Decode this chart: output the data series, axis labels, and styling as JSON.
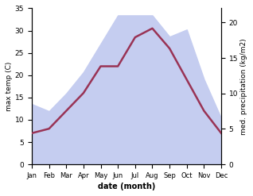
{
  "months": [
    "Jan",
    "Feb",
    "Mar",
    "Apr",
    "May",
    "Jun",
    "Jul",
    "Aug",
    "Sep",
    "Oct",
    "Nov",
    "Dec"
  ],
  "temp": [
    7,
    8,
    12,
    16,
    22,
    22,
    28.5,
    30.5,
    26,
    19,
    12,
    7
  ],
  "precip": [
    8.5,
    7.5,
    10,
    13,
    17,
    21,
    21,
    21,
    18,
    19,
    12,
    6.5
  ],
  "temp_color": "#993355",
  "precip_fill_color": "#c5cdf0",
  "xlabel": "date (month)",
  "ylabel_left": "max temp (C)",
  "ylabel_right": "med. precipitation (kg/m2)",
  "ylim_left": [
    0,
    35
  ],
  "ylim_right": [
    0,
    22
  ],
  "yticks_left": [
    0,
    5,
    10,
    15,
    20,
    25,
    30,
    35
  ],
  "yticks_right": [
    0,
    5,
    10,
    15,
    20
  ],
  "bg_color": "#ffffff",
  "temp_lw": 1.8,
  "xlabel_fontsize": 7,
  "ylabel_fontsize": 6.5,
  "tick_fontsize": 6.5,
  "xtick_fontsize": 6.0
}
